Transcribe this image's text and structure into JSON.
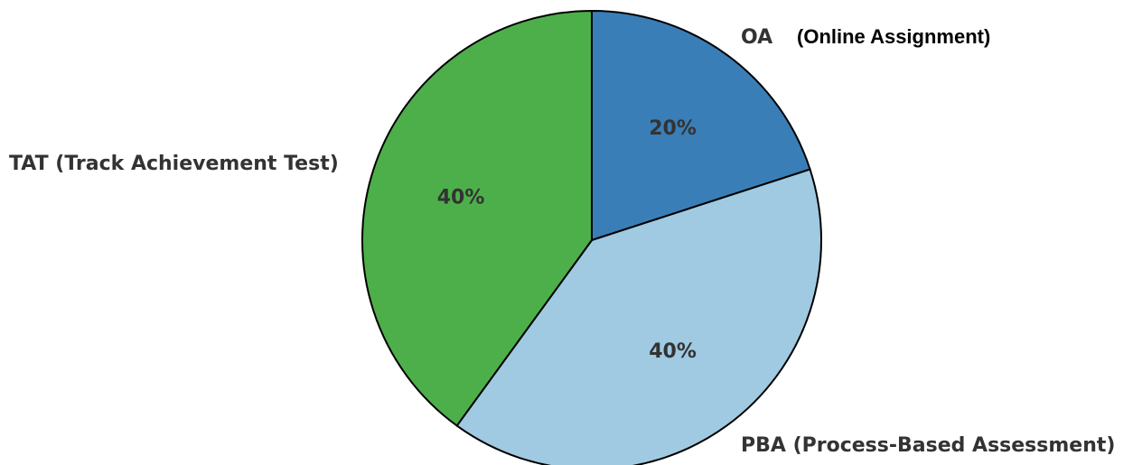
{
  "chart_data": {
    "type": "pie",
    "start_angle_deg": 90,
    "direction": "clockwise",
    "slices": [
      {
        "label": "OA",
        "label_detail": "(Online Assignment)",
        "value": 20,
        "pct_label": "20%",
        "color": "#3a7eb8"
      },
      {
        "label": "PBA (Process-Based Assessment)",
        "value": 40,
        "pct_label": "40%",
        "color": "#9fcae1"
      },
      {
        "label": "TAT (Track Achievement Test)",
        "value": 40,
        "pct_label": "40%",
        "color": "#4daf4a"
      }
    ]
  }
}
